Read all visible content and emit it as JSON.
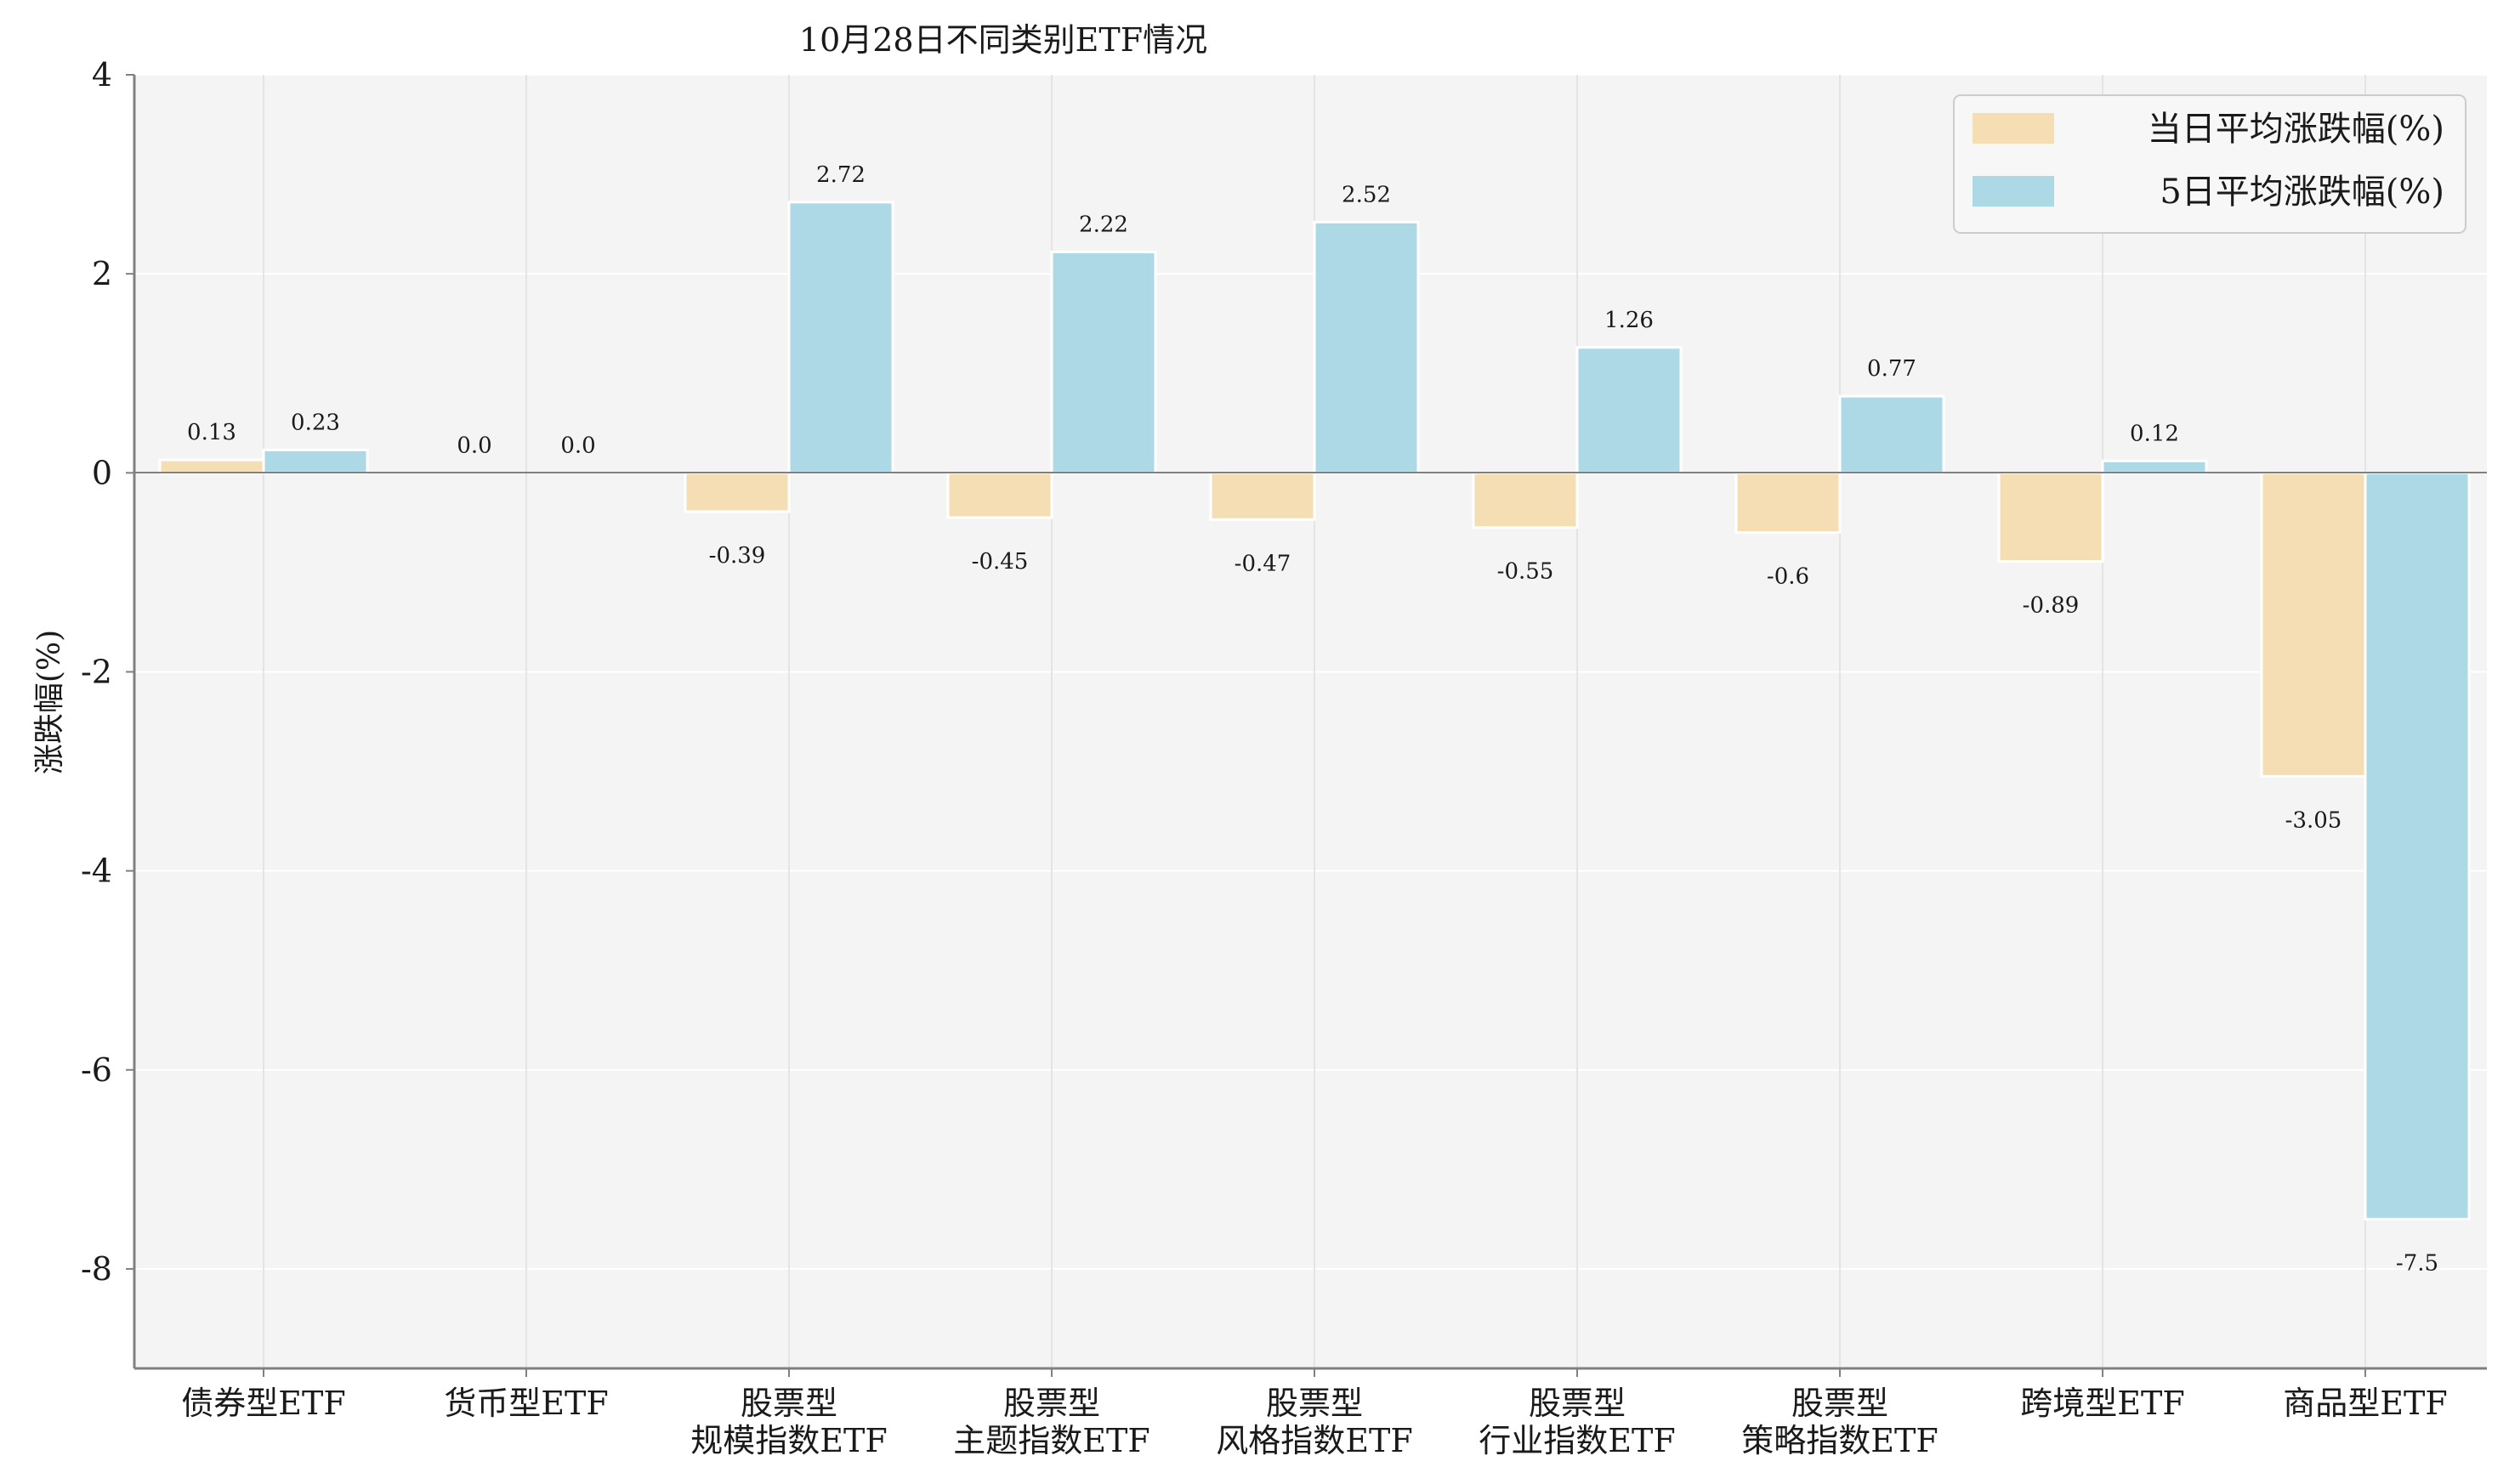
{
  "chart_data": {
    "type": "bar",
    "title": "10月28日不同类别ETF情况",
    "xlabel": "",
    "ylabel": "涨跌幅(%)",
    "ylim": [
      -9,
      4
    ],
    "yticks": [
      4,
      2,
      0,
      -2,
      -4,
      -6,
      -8
    ],
    "grid": true,
    "legend_position": "top-right",
    "categories": [
      [
        "债券型ETF"
      ],
      [
        "货币型ETF"
      ],
      [
        "股票型",
        "规模指数ETF"
      ],
      [
        "股票型",
        "主题指数ETF"
      ],
      [
        "股票型",
        "风格指数ETF"
      ],
      [
        "股票型",
        "行业指数ETF"
      ],
      [
        "股票型",
        "策略指数ETF"
      ],
      [
        "跨境型ETF"
      ],
      [
        "商品型ETF"
      ]
    ],
    "series": [
      {
        "name": "当日平均涨跌幅(%)",
        "color": "#f5deb3",
        "values": [
          0.13,
          0.0,
          -0.39,
          -0.45,
          -0.47,
          -0.55,
          -0.6,
          -0.89,
          -3.05
        ],
        "labels": [
          "0.13",
          "0.0",
          "-0.39",
          "-0.45",
          "-0.47",
          "-0.55",
          "-0.6",
          "-0.89",
          "-3.05"
        ]
      },
      {
        "name": "5日平均涨跌幅(%)",
        "color": "#add8e6",
        "values": [
          0.23,
          0.0,
          2.72,
          2.22,
          2.52,
          1.26,
          0.77,
          0.12,
          -7.5
        ],
        "labels": [
          "0.23",
          "0.0",
          "2.72",
          "2.22",
          "2.52",
          "1.26",
          "0.77",
          "0.12",
          "-7.5"
        ]
      }
    ]
  }
}
